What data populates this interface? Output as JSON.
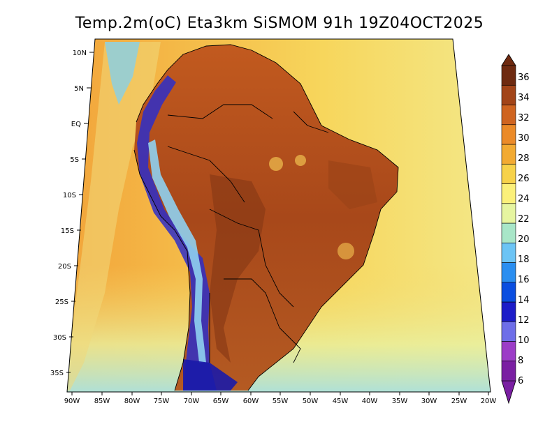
{
  "title": "Temp.2m(oC) Eta3km SiSMOM 91h 19Z04OCT2025",
  "map": {
    "lon_ticks": [
      "90W",
      "85W",
      "80W",
      "75W",
      "70W",
      "65W",
      "60W",
      "55W",
      "50W",
      "45W",
      "40W",
      "35W",
      "30W",
      "25W",
      "20W"
    ],
    "lat_ticks": [
      "10N",
      "5N",
      "EQ",
      "5S",
      "10S",
      "15S",
      "20S",
      "25S",
      "30S",
      "35S"
    ],
    "lon_range": [
      -90,
      -20
    ],
    "lat_range": [
      -38,
      12
    ],
    "ocean_warm_color": "#f5cd56",
    "ocean_cool_color": "#f0e27a",
    "land_hot_color": "#b5521c"
  },
  "colorbar": {
    "labels": [
      "6",
      "8",
      "10",
      "12",
      "14",
      "16",
      "18",
      "20",
      "22",
      "24",
      "26",
      "28",
      "30",
      "32",
      "34",
      "36"
    ],
    "colors": [
      "#7a1fa2",
      "#9c3cc7",
      "#6e6ee8",
      "#1c1cc8",
      "#0a4ee0",
      "#2a8ef0",
      "#6cc4f5",
      "#a8e6c8",
      "#e6f5a0",
      "#fbf07a",
      "#f7d24a",
      "#f2aa32",
      "#eb8a28",
      "#cf6420",
      "#a24418",
      "#6e2a10"
    ]
  }
}
